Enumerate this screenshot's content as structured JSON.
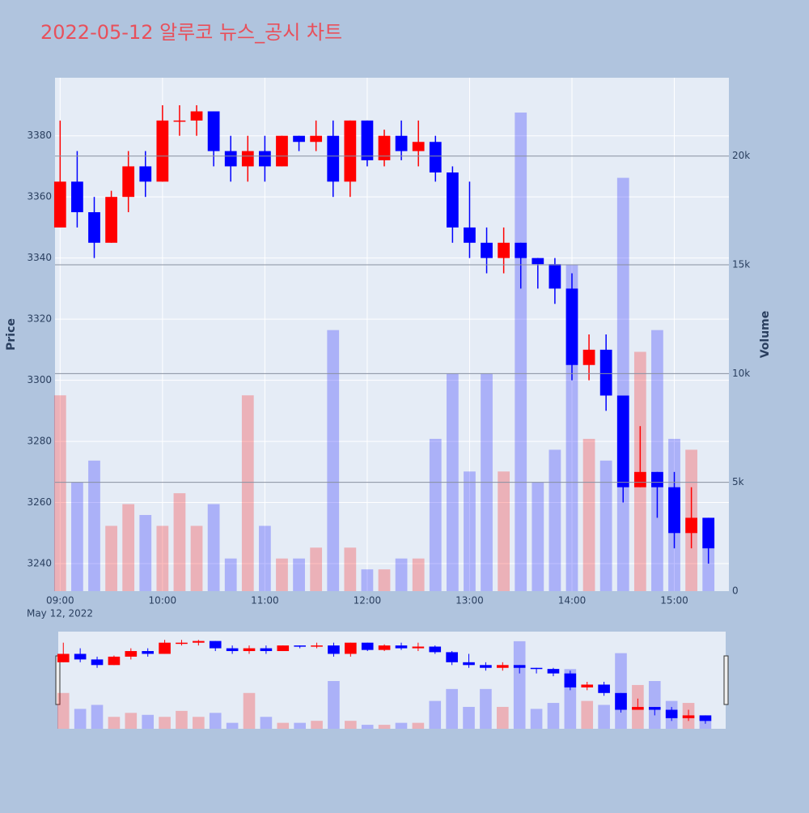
{
  "chart_data": {
    "type": "candlestick",
    "title": "2022-05-12 알루코 뉴스_공시 차트",
    "y_label": "Price",
    "y2_label": "Volume",
    "x_date_label": "May 12, 2022",
    "increasing_color": "#ff0000",
    "decreasing_color": "#0000ff",
    "x": [
      "2022-05-12 09:00",
      "2022-05-12 09:10",
      "2022-05-12 09:20",
      "2022-05-12 09:30",
      "2022-05-12 09:40",
      "2022-05-12 09:50",
      "2022-05-12 10:00",
      "2022-05-12 10:10",
      "2022-05-12 10:20",
      "2022-05-12 10:30",
      "2022-05-12 10:40",
      "2022-05-12 10:50",
      "2022-05-12 11:00",
      "2022-05-12 11:10",
      "2022-05-12 11:20",
      "2022-05-12 11:30",
      "2022-05-12 11:40",
      "2022-05-12 11:50",
      "2022-05-12 12:00",
      "2022-05-12 12:10",
      "2022-05-12 12:20",
      "2022-05-12 12:30",
      "2022-05-12 12:40",
      "2022-05-12 12:50",
      "2022-05-12 13:00",
      "2022-05-12 13:10",
      "2022-05-12 13:20",
      "2022-05-12 13:30",
      "2022-05-12 13:40",
      "2022-05-12 13:50",
      "2022-05-12 14:00",
      "2022-05-12 14:10",
      "2022-05-12 14:20",
      "2022-05-12 14:30",
      "2022-05-12 14:40",
      "2022-05-12 14:50",
      "2022-05-12 15:00",
      "2022-05-12 15:10",
      "2022-05-12 15:20"
    ],
    "open": [
      3350,
      3365,
      3355,
      3345,
      3360,
      3370,
      3365,
      3385,
      3385,
      3388,
      3375,
      3370,
      3375,
      3370,
      3380,
      3378,
      3380,
      3365,
      3385,
      3372,
      3380,
      3375,
      3378,
      3368,
      3350,
      3345,
      3340,
      3345,
      3340,
      3338,
      3330,
      3305,
      3310,
      3295,
      3265,
      3270,
      3265,
      3250,
      3255
    ],
    "high": [
      3385,
      3375,
      3360,
      3362,
      3375,
      3375,
      3390,
      3390,
      3390,
      3388,
      3380,
      3380,
      3380,
      3380,
      3380,
      3385,
      3385,
      3385,
      3385,
      3382,
      3385,
      3385,
      3380,
      3370,
      3365,
      3350,
      3350,
      3345,
      3340,
      3340,
      3335,
      3315,
      3315,
      3295,
      3285,
      3270,
      3270,
      3265,
      3255
    ],
    "low": [
      3350,
      3350,
      3340,
      3345,
      3355,
      3360,
      3365,
      3380,
      3380,
      3370,
      3365,
      3365,
      3365,
      3370,
      3375,
      3375,
      3360,
      3360,
      3370,
      3370,
      3372,
      3370,
      3365,
      3345,
      3340,
      3335,
      3335,
      3330,
      3330,
      3325,
      3300,
      3300,
      3290,
      3260,
      3265,
      3255,
      3245,
      3245,
      3240
    ],
    "close": [
      3365,
      3355,
      3345,
      3360,
      3370,
      3365,
      3385,
      3385,
      3388,
      3375,
      3370,
      3375,
      3370,
      3380,
      3378,
      3380,
      3365,
      3385,
      3372,
      3380,
      3375,
      3378,
      3368,
      3350,
      3345,
      3340,
      3345,
      3340,
      3338,
      3330,
      3305,
      3310,
      3295,
      3265,
      3270,
      3265,
      3250,
      3255,
      3245
    ],
    "volume": [
      9000,
      5000,
      6000,
      3000,
      4000,
      3500,
      3000,
      4500,
      3000,
      4000,
      1500,
      9000,
      3000,
      1500,
      1500,
      2000,
      12000,
      2000,
      1000,
      1000,
      1500,
      1500,
      7000,
      10000,
      5500,
      10000,
      5500,
      22000,
      5000,
      6500,
      15000,
      7000,
      6000,
      19000,
      11000,
      12000,
      7000,
      6500,
      3000
    ],
    "xlim": [
      "2022-05-12 08:57",
      "2022-05-12 15:32"
    ],
    "xticks": [
      {
        "value": "2022-05-12 09:00",
        "label": "09:00"
      },
      {
        "value": "2022-05-12 10:00",
        "label": "10:00"
      },
      {
        "value": "2022-05-12 11:00",
        "label": "11:00"
      },
      {
        "value": "2022-05-12 12:00",
        "label": "12:00"
      },
      {
        "value": "2022-05-12 13:00",
        "label": "13:00"
      },
      {
        "value": "2022-05-12 14:00",
        "label": "14:00"
      },
      {
        "value": "2022-05-12 15:00",
        "label": "15:00"
      }
    ],
    "ylim": [
      3231,
      3399
    ],
    "yticks": [
      3240,
      3260,
      3280,
      3300,
      3320,
      3340,
      3360,
      3380
    ],
    "y2lim": [
      0,
      23600
    ],
    "y2ticks": [
      0,
      {
        "value": 5000,
        "label": "5k"
      },
      {
        "value": 10000,
        "label": "10k"
      },
      {
        "value": 15000,
        "label": "15k"
      },
      {
        "value": 20000,
        "label": "20k"
      }
    ],
    "grid": true
  }
}
